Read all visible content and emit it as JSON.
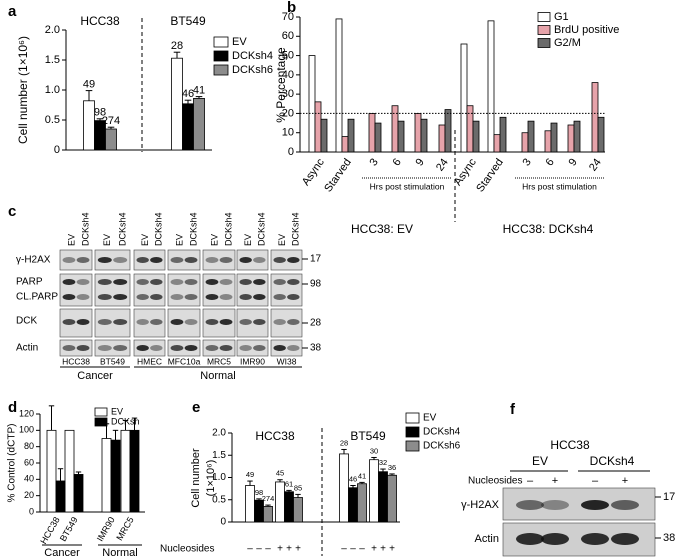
{
  "panel_labels": [
    "a",
    "b",
    "c",
    "d",
    "e",
    "f"
  ],
  "chart_data": [
    {
      "type": "bar",
      "ylabel": "Cell number (1×10⁶)",
      "categories": [
        "HCC38",
        "BT549"
      ],
      "series": [
        {
          "name": "EV",
          "color": "#ffffff",
          "values": [
            0.82,
            1.53
          ],
          "errors": [
            0.17,
            0.1
          ],
          "notes": [
            49,
            28
          ]
        },
        {
          "name": "DCKsh4",
          "color": "#000000",
          "values": [
            0.49,
            0.77
          ],
          "errors": [
            0.03,
            0.06
          ],
          "notes": [
            98,
            46
          ]
        },
        {
          "name": "DCKsh6",
          "color": "#8c8c8c",
          "values": [
            0.35,
            0.86
          ],
          "errors": [
            0.03,
            0.03
          ],
          "notes": [
            274,
            41
          ]
        }
      ],
      "ylim": [
        0,
        2
      ],
      "yticks": [
        0,
        0.5,
        {
          "value": 1,
          "label": "1.0"
        },
        1.5,
        {
          "value": 2,
          "label": "2.0"
        }
      ]
    },
    {
      "type": "bar",
      "ylabel": "% Percentage",
      "categories": [
        "Async",
        "Starved",
        "3",
        "6",
        "9",
        "24",
        "Async",
        "Starved",
        "3",
        "6",
        "9",
        "24"
      ],
      "groups": [
        "HCC38: EV",
        "HCC38: DCKsh4"
      ],
      "timeline_labels": [
        "Hrs post stimulation",
        "Hrs post stimulation"
      ],
      "reference_line": 20,
      "series": [
        {
          "name": "G1",
          "color": "#ffffff",
          "values": [
            50,
            69,
            null,
            null,
            null,
            null,
            56,
            68,
            null,
            null,
            null,
            null
          ]
        },
        {
          "name": "BrdU positive",
          "color": "#e6a3aa",
          "values": [
            26,
            8,
            20,
            24,
            20,
            14,
            24,
            9,
            10,
            11,
            14,
            36
          ]
        },
        {
          "name": "G2/M",
          "color": "#6b6b6b",
          "values": [
            17,
            17,
            15,
            16,
            17,
            22,
            16,
            18,
            16,
            15,
            16,
            18
          ]
        }
      ],
      "ylim": [
        0,
        70
      ],
      "yticks": [
        0,
        10,
        20,
        30,
        40,
        50,
        60,
        70
      ]
    },
    {
      "type": "bar",
      "ylabel": "% Control (dCTP)",
      "categories": [
        "HCC38",
        "BT549",
        "IMR90",
        "MRC5"
      ],
      "groups": [
        "Cancer",
        "Normal"
      ],
      "series": [
        {
          "name": "EV",
          "color": "#ffffff",
          "values": [
            100,
            100,
            90,
            100
          ],
          "errors": [
            30,
            null,
            18,
            12
          ]
        },
        {
          "name": "DCKsh",
          "color": "#000000",
          "values": [
            38,
            46,
            88,
            100
          ],
          "errors": [
            15,
            3,
            12,
            15
          ]
        }
      ],
      "ylim": [
        0,
        120
      ],
      "yticks": [
        0,
        20,
        40,
        60,
        80,
        100,
        120
      ]
    },
    {
      "type": "bar",
      "ylabel": [
        "Cell number",
        "(1×10⁶)"
      ],
      "categories": [
        null,
        null,
        null,
        null
      ],
      "groups": [
        "HCC38",
        "BT549"
      ],
      "nucleosides": {
        "label": "Nucleosides",
        "signs": [
          "–",
          "–",
          "–",
          "+",
          "+",
          "+",
          "–",
          "–",
          "–",
          "+",
          "+",
          "+"
        ]
      },
      "series": [
        {
          "name": "EV",
          "color": "#ffffff",
          "values": [
            0.82,
            0.9,
            1.53,
            1.4
          ],
          "errors": [
            0.1,
            0.05,
            0.1,
            0.05
          ],
          "notes": [
            49,
            45,
            28,
            30
          ]
        },
        {
          "name": "DCKsh4",
          "color": "#000000",
          "values": [
            0.49,
            0.68,
            0.77,
            1.13
          ],
          "errors": [
            0.03,
            0.03,
            0.05,
            0.06
          ],
          "notes": [
            98,
            61,
            46,
            32
          ]
        },
        {
          "name": "DCKsh6",
          "color": "#8c8c8c",
          "values": [
            0.35,
            0.55,
            0.86,
            1.05
          ],
          "errors": [
            0.03,
            0.07,
            0.03,
            0.03
          ],
          "notes": [
            274,
            85,
            41,
            36
          ]
        }
      ],
      "ylim": [
        0,
        2
      ],
      "yticks": [
        0,
        0.5,
        {
          "value": 1,
          "label": "1.0"
        },
        1.5,
        {
          "value": 2,
          "label": "2.0"
        }
      ]
    }
  ],
  "blots": [
    {
      "lanes": [
        "EV",
        "DCKsh4"
      ],
      "cell_lines": [
        "HCC38",
        "BT549",
        "HMEC",
        "MFC10a",
        "MRC5",
        "IMR90",
        "WI38"
      ],
      "rows": [
        "γ-H2AX",
        "PARP",
        "CL.PARP",
        "DCK",
        "Actin"
      ],
      "markers": [
        17,
        98,
        28,
        38
      ],
      "groups": [
        "Cancer",
        "Normal"
      ]
    },
    {
      "title": "HCC38",
      "lanes": [
        "EV",
        "DCKsh4"
      ],
      "treatment": {
        "label": "Nucleosides",
        "signs": [
          "–",
          "+",
          "–",
          "+"
        ]
      },
      "rows": [
        "γ-H2AX",
        "Actin"
      ],
      "markers": [
        17,
        38
      ]
    }
  ]
}
